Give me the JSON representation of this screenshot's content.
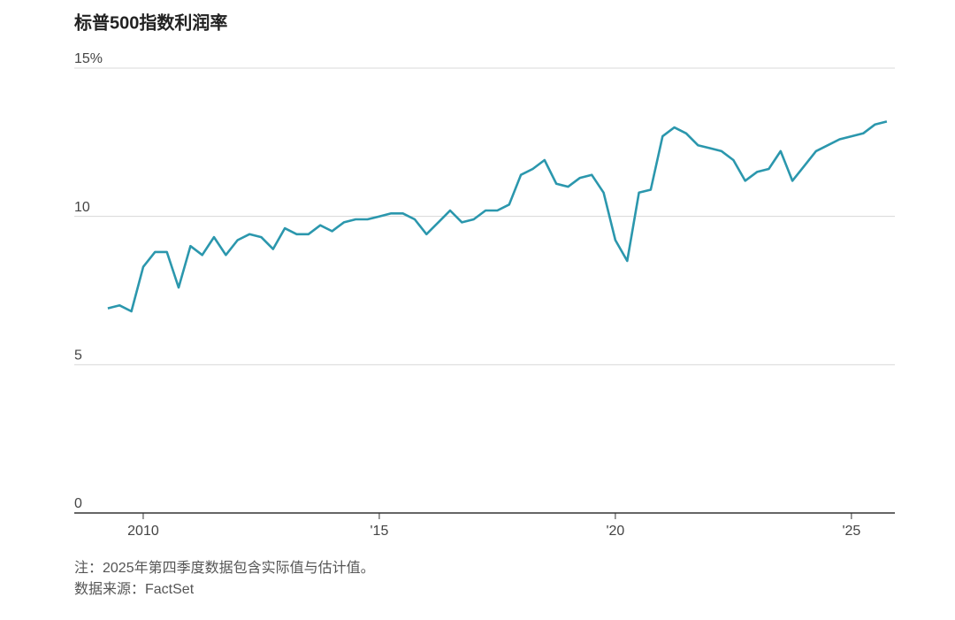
{
  "chart_data": {
    "type": "line",
    "title": "标普500指数利润率",
    "notes": [
      "注：2025年第四季度数据包含实际值与估计值。",
      "数据来源：FactSet"
    ],
    "x": [
      2009.25,
      2009.5,
      2009.75,
      2010,
      2010.25,
      2010.5,
      2010.75,
      2011,
      2011.25,
      2011.5,
      2011.75,
      2012,
      2012.25,
      2012.5,
      2012.75,
      2013,
      2013.25,
      2013.5,
      2013.75,
      2014,
      2014.25,
      2014.5,
      2014.75,
      2015,
      2015.25,
      2015.5,
      2015.75,
      2016,
      2016.25,
      2016.5,
      2016.75,
      2017,
      2017.25,
      2017.5,
      2017.75,
      2018,
      2018.25,
      2018.5,
      2018.75,
      2019,
      2019.25,
      2019.5,
      2019.75,
      2020,
      2020.25,
      2020.5,
      2020.75,
      2021,
      2021.25,
      2021.5,
      2021.75,
      2022,
      2022.25,
      2022.5,
      2022.75,
      2023,
      2023.25,
      2023.5,
      2023.75,
      2024,
      2024.25,
      2024.5,
      2024.75,
      2025,
      2025.25,
      2025.5,
      2025.75
    ],
    "series": [
      {
        "color": "#2b97ad",
        "values": [
          6.9,
          7.0,
          6.8,
          8.3,
          8.8,
          8.8,
          7.6,
          9.0,
          8.7,
          9.3,
          8.7,
          9.2,
          9.4,
          9.3,
          8.9,
          9.6,
          9.4,
          9.4,
          9.7,
          9.5,
          9.8,
          9.9,
          9.9,
          10.0,
          10.1,
          10.1,
          9.9,
          9.4,
          9.8,
          10.2,
          9.8,
          9.9,
          10.2,
          10.2,
          10.4,
          11.4,
          11.6,
          11.9,
          11.1,
          11.0,
          11.3,
          11.4,
          10.8,
          9.2,
          8.5,
          10.8,
          10.9,
          12.7,
          13.0,
          12.8,
          12.4,
          12.3,
          12.2,
          11.9,
          11.2,
          11.5,
          11.6,
          12.2,
          11.2,
          11.7,
          12.2,
          12.4,
          12.6,
          12.7,
          12.8,
          13.1,
          13.2
        ]
      }
    ],
    "xlim": [
      2008.54,
      2025.92
    ],
    "xticks": [
      2010,
      {
        "value": 2015,
        "label": "'15"
      },
      {
        "value": 2020,
        "label": "'20"
      },
      {
        "value": 2025,
        "label": "'25"
      }
    ],
    "ylim": [
      0,
      15
    ],
    "yticks": [
      0,
      5,
      10,
      {
        "value": 15,
        "label": "15%"
      }
    ],
    "grid": true
  }
}
